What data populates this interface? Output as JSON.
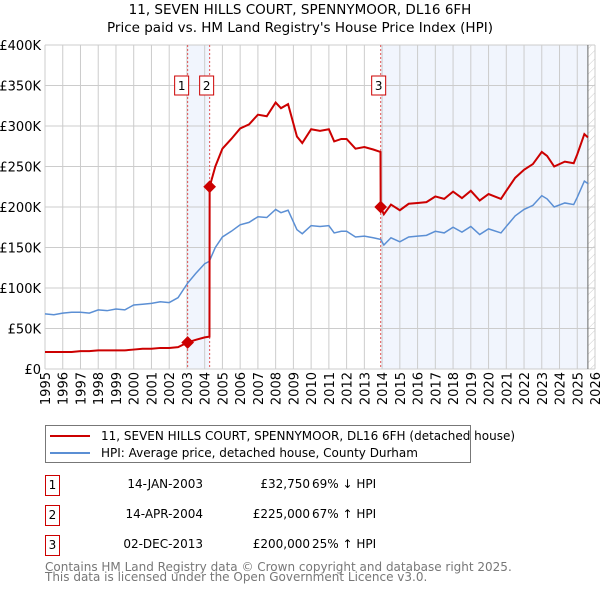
{
  "title_line1": "11, SEVEN HILLS COURT, SPENNYMOOR, DL16 6FH",
  "title_line2": "Price paid vs. HM Land Registry's House Price Index (HPI)",
  "chart_data": {
    "type": "line",
    "title": "11, SEVEN HILLS COURT, SPENNYMOOR, DL16 6FH — Price paid vs. HM Land Registry's House Price Index (HPI)",
    "xlim": [
      1995,
      2026
    ],
    "ylim": [
      0,
      400000
    ],
    "y_ticks": [
      0,
      50000,
      100000,
      150000,
      200000,
      250000,
      300000,
      350000,
      400000
    ],
    "y_tick_labels": [
      "£0",
      "£50K",
      "£100K",
      "£150K",
      "£200K",
      "£250K",
      "£300K",
      "£350K",
      "£400K"
    ],
    "x_ticks": [
      1995,
      1996,
      1997,
      1998,
      1999,
      2000,
      2001,
      2002,
      2003,
      2004,
      2005,
      2006,
      2007,
      2008,
      2009,
      2010,
      2011,
      2012,
      2013,
      2014,
      2015,
      2016,
      2017,
      2018,
      2019,
      2020,
      2021,
      2022,
      2023,
      2024,
      2025,
      2026
    ],
    "grid": true,
    "x": [
      1995,
      1995.5,
      1996,
      1996.5,
      1997,
      1997.5,
      1998,
      1998.5,
      1999,
      1999.5,
      2000,
      2000.5,
      2001,
      2001.5,
      2002,
      2002.5,
      2003.04,
      2003.5,
      2004,
      2004.27,
      2004.28,
      2004.6,
      2005,
      2005.5,
      2006,
      2006.5,
      2007,
      2007.5,
      2008,
      2008.3,
      2008.7,
      2009.2,
      2009.5,
      2010,
      2010.5,
      2011,
      2011.3,
      2011.7,
      2012,
      2012.5,
      2013,
      2013.5,
      2013.91,
      2013.92,
      2014.1,
      2014.5,
      2015,
      2015.5,
      2016,
      2016.5,
      2017,
      2017.5,
      2018,
      2018.5,
      2019,
      2019.5,
      2020,
      2020.7,
      2021,
      2021.5,
      2022,
      2022.5,
      2023,
      2023.3,
      2023.7,
      2024.3,
      2024.8,
      2025,
      2025.4,
      2025.6
    ],
    "series": [
      {
        "name": "11, SEVEN HILLS COURT, SPENNYMOOR, DL16 6FH (detached house)",
        "color": "#cc0000",
        "values_k": [
          21,
          21,
          21,
          21,
          22,
          22,
          23,
          23,
          23,
          23,
          24,
          25,
          25,
          26,
          26,
          27,
          32.75,
          36,
          39,
          40,
          225,
          250,
          272,
          284,
          297,
          302,
          314,
          312,
          329,
          322,
          327,
          287,
          279,
          296,
          294,
          296,
          281,
          284,
          284,
          272,
          274,
          271,
          268,
          200,
          191,
          203,
          196,
          204,
          205,
          206,
          213,
          210,
          219,
          211,
          220,
          208,
          216,
          210,
          220,
          236,
          246,
          253,
          268,
          263,
          250,
          256,
          254,
          265,
          290,
          286
        ]
      },
      {
        "name": "HPI: Average price, detached house, County Durham",
        "color": "#5b8fd4",
        "values_k": [
          68,
          67,
          69,
          70,
          70,
          69,
          73,
          72,
          74,
          73,
          79,
          80,
          81,
          83,
          82,
          88,
          106,
          118,
          130,
          133,
          134,
          150,
          163,
          170,
          178,
          181,
          188,
          187,
          197,
          193,
          196,
          172,
          167,
          177,
          176,
          177,
          168,
          170,
          170,
          163,
          164,
          162,
          160,
          160,
          153,
          162,
          157,
          163,
          164,
          165,
          170,
          168,
          175,
          169,
          176,
          166,
          173,
          168,
          176,
          189,
          197,
          202,
          214,
          210,
          200,
          205,
          203,
          212,
          232,
          229
        ]
      }
    ],
    "sales": [
      {
        "label": "1",
        "x": 2003.04,
        "value": 32750
      },
      {
        "label": "2",
        "x": 2004.28,
        "value": 225000
      },
      {
        "label": "3",
        "x": 2013.92,
        "value": 200000
      }
    ],
    "shaded_ranges": [
      [
        2003.04,
        2004.28
      ],
      [
        2013.92,
        2025.6
      ]
    ],
    "data_end": 2025.6
  },
  "legend": {
    "property": "11, SEVEN HILLS COURT, SPENNYMOOR, DL16 6FH (detached house)",
    "hpi": "HPI: Average price, detached house, County Durham"
  },
  "transactions": [
    {
      "num": "1",
      "date": "14-JAN-2003",
      "price": "£32,750",
      "hpi": "69% ↓ HPI"
    },
    {
      "num": "2",
      "date": "14-APR-2004",
      "price": "£225,000",
      "hpi": "67% ↑ HPI"
    },
    {
      "num": "3",
      "date": "02-DEC-2013",
      "price": "£200,000",
      "hpi": "25% ↑ HPI"
    }
  ],
  "footer_line1": "Contains HM Land Registry data © Crown copyright and database right 2025.",
  "footer_line2": "This data is licensed under the Open Government Licence v3.0."
}
